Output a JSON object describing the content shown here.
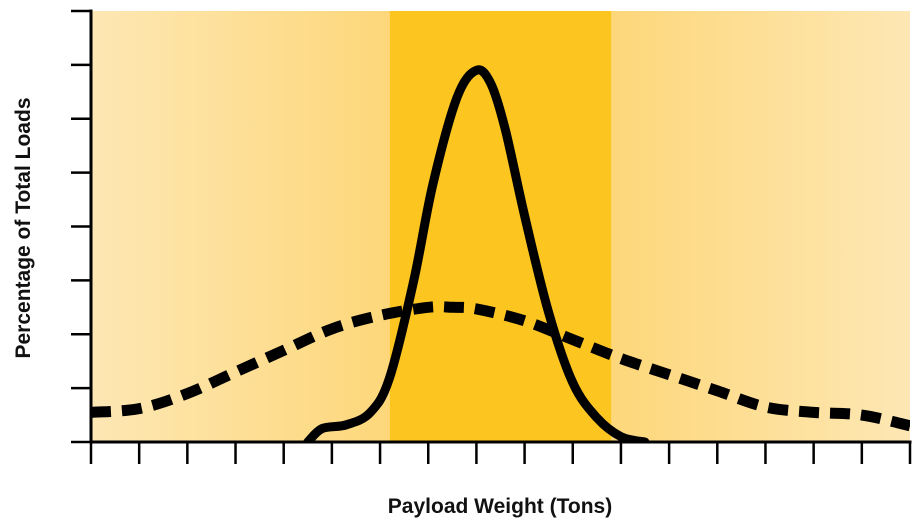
{
  "chart_data": {
    "type": "line",
    "title": "",
    "xlabel": "Payload Weight (Tons)",
    "ylabel": "Percentage of Total Loads",
    "xlim": [
      0,
      17
    ],
    "ylim": [
      0,
      8
    ],
    "x_tick_count": 18,
    "y_tick_count": 9,
    "grid": false,
    "legend": "none",
    "highlight_band": {
      "x_start": 6.2,
      "x_end": 10.8
    },
    "colors": {
      "band": "#fcc520",
      "gradient_edge": "#fde7b4",
      "gradient_mid": "#fdd77a",
      "line": "#000000",
      "axis": "#000000"
    },
    "series": [
      {
        "style": "solid",
        "x": [
          4.5,
          4.8,
          5.3,
          5.8,
          6.2,
          6.7,
          7.1,
          7.6,
          8.0,
          8.3,
          8.6,
          9.0,
          9.5,
          10.0,
          10.5,
          11.0,
          11.5
        ],
        "y": [
          0.0,
          0.25,
          0.32,
          0.55,
          1.2,
          3.0,
          4.8,
          6.4,
          6.9,
          6.65,
          5.8,
          4.2,
          2.4,
          1.1,
          0.45,
          0.1,
          0.0
        ]
      },
      {
        "style": "dashed",
        "x": [
          0,
          1,
          2,
          3,
          4,
          5,
          6,
          7,
          7.5,
          8,
          9,
          10,
          11,
          12,
          13,
          14,
          15,
          16,
          17
        ],
        "y": [
          0.55,
          0.62,
          0.9,
          1.3,
          1.7,
          2.1,
          2.35,
          2.5,
          2.5,
          2.47,
          2.25,
          1.9,
          1.55,
          1.25,
          0.95,
          0.65,
          0.55,
          0.5,
          0.3
        ]
      }
    ]
  }
}
